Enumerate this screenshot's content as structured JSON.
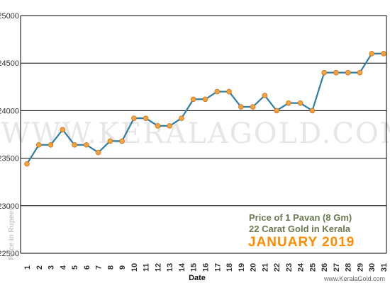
{
  "chart_data": {
    "type": "line",
    "x": [
      1,
      2,
      3,
      4,
      5,
      6,
      7,
      8,
      9,
      10,
      11,
      12,
      13,
      14,
      15,
      16,
      17,
      18,
      19,
      20,
      21,
      22,
      23,
      24,
      25,
      26,
      27,
      28,
      29,
      30,
      31
    ],
    "series": [
      {
        "values": [
          23440,
          23640,
          23640,
          23800,
          23640,
          23640,
          23560,
          23680,
          23680,
          23920,
          23920,
          23840,
          23840,
          23920,
          24120,
          24120,
          24200,
          24200,
          24040,
          24040,
          24160,
          24000,
          24080,
          24080,
          24000,
          24400,
          24400,
          24400,
          24400,
          24600,
          24600
        ]
      }
    ],
    "xlabel": "Date",
    "ylabel": "Price in Rupees",
    "ylim": [
      22500,
      25000
    ],
    "yticks": [
      22500,
      23000,
      23500,
      24000,
      24500,
      25000
    ],
    "grid": true,
    "legend": {
      "line1": "Price of 1 Pavan (8 Gm)",
      "line2": "22 Carat Gold in Kerala",
      "month": "JANUARY 2019",
      "placement": "bottom-right"
    },
    "watermark": "WWW.KERALAGOLD.COM",
    "website": "www.KeralaGold.com",
    "colors": {
      "line": "#2e7fa8",
      "marker": "#f7a23c",
      "marker_edge": "#c8731c",
      "grid": "#000000"
    }
  }
}
